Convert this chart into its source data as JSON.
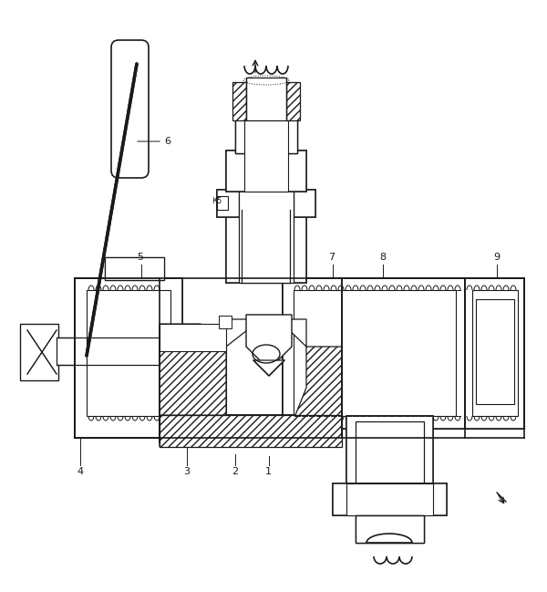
{
  "background": "#ffffff",
  "line_color": "#1a1a1a",
  "fig_width": 6.0,
  "fig_height": 6.49,
  "dpi": 100
}
